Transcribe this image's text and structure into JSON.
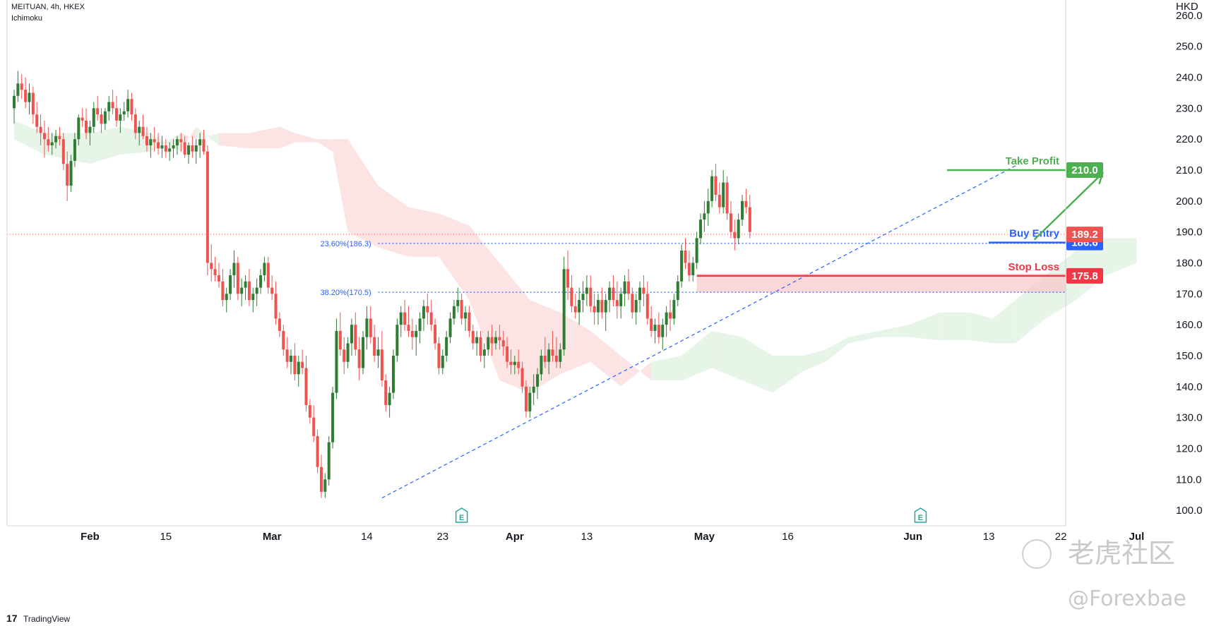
{
  "header": {
    "symbol_line": "MEITUAN, 4h, HKEX",
    "indicator": "Ichimoku"
  },
  "footer": {
    "brand": "TradingView"
  },
  "watermark": {
    "cn_text": "老虎社区",
    "handle": "@Forexbae"
  },
  "colors": {
    "bull": "#26a69a",
    "bull_candle": "#2e7d32",
    "bear": "#ef5350",
    "take_profit": "#4caf50",
    "buy_entry": "#2962ff",
    "stop_loss": "#f23645",
    "cloud_bull": "#e7f4e8",
    "cloud_bear": "#fde4e4",
    "fib": "#2962ff"
  },
  "chart_data": {
    "type": "candlestick",
    "title": "MEITUAN, 4h, HKEX",
    "indicator": "Ichimoku",
    "currency": "HKD",
    "ylim": [
      95,
      265
    ],
    "y_ticks": [
      "260.0",
      "250.0",
      "240.0",
      "230.0",
      "220.0",
      "210.0",
      "200.0",
      "190.0",
      "180.0",
      "170.0",
      "160.0",
      "150.0",
      "140.0",
      "130.0",
      "120.0",
      "110.0",
      "100.0"
    ],
    "x_ticks": [
      {
        "label": "Feb",
        "bar": 20
      },
      {
        "label": "15",
        "bar": 40
      },
      {
        "label": "Mar",
        "bar": 68
      },
      {
        "label": "14",
        "bar": 93
      },
      {
        "label": "23",
        "bar": 113
      },
      {
        "label": "Apr",
        "bar": 132
      },
      {
        "label": "13",
        "bar": 151
      },
      {
        "label": "May",
        "bar": 182
      },
      {
        "label": "16",
        "bar": 204
      },
      {
        "label": "Jun",
        "bar": 237
      },
      {
        "label": "13",
        "bar": 257
      },
      {
        "label": "22",
        "bar": 276
      },
      {
        "label": "Jul",
        "bar": 296
      }
    ],
    "x_label_bold": [
      "Feb",
      "Mar",
      "Apr",
      "May",
      "Jun",
      "Jul"
    ],
    "last_price": {
      "value": 189.2,
      "label": "189.2"
    },
    "levels": [
      {
        "name": "Take Profit",
        "value": 210.0,
        "label": "210.0",
        "color": "#4caf50",
        "from_bar": 246
      },
      {
        "name": "Buy Entry",
        "value": 186.6,
        "label": "186.6",
        "color": "#2962ff",
        "from_bar": 257
      },
      {
        "name": "Stop Loss",
        "value": 175.8,
        "label": "175.8",
        "color": "#f23645",
        "from_bar": 180
      }
    ],
    "fib_levels": [
      {
        "label": "23.60%(186.3)",
        "value": 186.3,
        "from_bar": 96
      },
      {
        "label": "38.20%(170.5)",
        "value": 170.5,
        "from_bar": 96
      }
    ],
    "stop_zone": {
      "from_bar": 180,
      "top": 176.5,
      "bottom": 170.5
    },
    "trendline": {
      "from": {
        "bar": 97,
        "value": 104
      },
      "to": {
        "bar": 265,
        "value": 212
      }
    },
    "projection_arrow": {
      "from": {
        "bar": 269,
        "value": 187.5
      },
      "to": {
        "bar": 287,
        "value": 209
      }
    },
    "earnings_markers": [
      {
        "bar": 118,
        "label": "E"
      },
      {
        "bar": 239,
        "label": "E"
      }
    ],
    "candles_ohlc": [
      [
        230,
        236,
        225,
        234
      ],
      [
        234,
        242,
        232,
        238
      ],
      [
        238,
        241,
        233,
        236
      ],
      [
        236,
        240,
        230,
        232
      ],
      [
        232,
        238,
        228,
        235
      ],
      [
        235,
        237,
        225,
        228
      ],
      [
        228,
        232,
        222,
        224
      ],
      [
        224,
        228,
        218,
        222
      ],
      [
        222,
        226,
        214,
        220
      ],
      [
        220,
        224,
        216,
        218
      ],
      [
        218,
        222,
        215,
        219
      ],
      [
        219,
        223,
        217,
        221
      ],
      [
        221,
        224,
        218,
        220
      ],
      [
        220,
        222,
        210,
        212
      ],
      [
        212,
        216,
        200,
        205
      ],
      [
        205,
        215,
        203,
        213
      ],
      [
        213,
        222,
        211,
        220
      ],
      [
        220,
        228,
        218,
        227
      ],
      [
        227,
        230,
        224,
        226
      ],
      [
        226,
        230,
        220,
        222
      ],
      [
        222,
        226,
        218,
        224
      ],
      [
        224,
        232,
        222,
        230
      ],
      [
        230,
        234,
        226,
        228
      ],
      [
        228,
        230,
        222,
        225
      ],
      [
        225,
        230,
        223,
        229
      ],
      [
        229,
        234,
        226,
        232
      ],
      [
        232,
        236,
        228,
        230
      ],
      [
        230,
        234,
        224,
        226
      ],
      [
        226,
        230,
        222,
        228
      ],
      [
        228,
        232,
        226,
        229
      ],
      [
        229,
        236,
        227,
        233
      ],
      [
        233,
        235,
        226,
        228
      ],
      [
        228,
        230,
        220,
        222
      ],
      [
        222,
        226,
        218,
        224
      ],
      [
        224,
        228,
        220,
        221
      ],
      [
        221,
        224,
        216,
        218
      ],
      [
        218,
        222,
        214,
        220
      ],
      [
        220,
        224,
        216,
        219
      ],
      [
        219,
        222,
        215,
        217
      ],
      [
        217,
        221,
        214,
        218
      ],
      [
        218,
        220,
        214,
        216
      ],
      [
        216,
        219,
        213,
        217
      ],
      [
        217,
        220,
        214,
        218
      ],
      [
        218,
        221,
        215,
        220
      ],
      [
        220,
        222,
        216,
        219
      ],
      [
        219,
        221,
        214,
        215
      ],
      [
        215,
        219,
        212,
        218
      ],
      [
        218,
        221,
        214,
        216
      ],
      [
        216,
        220,
        212,
        218
      ],
      [
        218,
        222,
        214,
        220
      ],
      [
        220,
        223,
        215,
        216
      ],
      [
        216,
        218,
        176,
        180
      ],
      [
        180,
        186,
        174,
        178
      ],
      [
        178,
        182,
        174,
        176
      ],
      [
        176,
        180,
        172,
        174
      ],
      [
        174,
        178,
        166,
        168
      ],
      [
        168,
        172,
        164,
        170
      ],
      [
        170,
        178,
        168,
        176
      ],
      [
        176,
        184,
        172,
        180
      ],
      [
        180,
        182,
        168,
        170
      ],
      [
        170,
        175,
        166,
        172
      ],
      [
        172,
        176,
        168,
        174
      ],
      [
        174,
        178,
        166,
        168
      ],
      [
        168,
        172,
        164,
        170
      ],
      [
        170,
        175,
        166,
        172
      ],
      [
        172,
        178,
        170,
        176
      ],
      [
        176,
        182,
        174,
        180
      ],
      [
        180,
        182,
        170,
        172
      ],
      [
        172,
        176,
        168,
        170
      ],
      [
        170,
        174,
        160,
        162
      ],
      [
        162,
        164,
        156,
        158
      ],
      [
        158,
        160,
        150,
        152
      ],
      [
        152,
        156,
        146,
        148
      ],
      [
        148,
        152,
        144,
        150
      ],
      [
        150,
        154,
        142,
        144
      ],
      [
        144,
        150,
        140,
        148
      ],
      [
        148,
        152,
        144,
        146
      ],
      [
        146,
        150,
        132,
        134
      ],
      [
        134,
        136,
        128,
        130
      ],
      [
        130,
        134,
        122,
        124
      ],
      [
        124,
        126,
        112,
        114
      ],
      [
        114,
        118,
        104,
        106
      ],
      [
        106,
        112,
        104,
        110
      ],
      [
        110,
        124,
        108,
        122
      ],
      [
        122,
        140,
        120,
        138
      ],
      [
        138,
        162,
        136,
        158
      ],
      [
        158,
        164,
        150,
        152
      ],
      [
        152,
        156,
        144,
        148
      ],
      [
        148,
        156,
        146,
        154
      ],
      [
        154,
        162,
        150,
        160
      ],
      [
        160,
        164,
        150,
        152
      ],
      [
        152,
        156,
        142,
        146
      ],
      [
        146,
        158,
        144,
        156
      ],
      [
        156,
        166,
        152,
        162
      ],
      [
        162,
        166,
        154,
        156
      ],
      [
        156,
        160,
        148,
        150
      ],
      [
        150,
        156,
        146,
        152
      ],
      [
        152,
        158,
        140,
        142
      ],
      [
        142,
        144,
        132,
        134
      ],
      [
        134,
        140,
        130,
        138
      ],
      [
        138,
        152,
        136,
        150
      ],
      [
        150,
        162,
        148,
        160
      ],
      [
        160,
        166,
        156,
        164
      ],
      [
        164,
        168,
        158,
        160
      ],
      [
        160,
        166,
        156,
        158
      ],
      [
        158,
        162,
        152,
        156
      ],
      [
        156,
        160,
        150,
        158
      ],
      [
        158,
        164,
        154,
        162
      ],
      [
        162,
        168,
        158,
        166
      ],
      [
        166,
        170,
        160,
        164
      ],
      [
        164,
        168,
        158,
        160
      ],
      [
        160,
        162,
        152,
        154
      ],
      [
        154,
        156,
        144,
        146
      ],
      [
        146,
        152,
        144,
        150
      ],
      [
        150,
        158,
        148,
        156
      ],
      [
        156,
        164,
        154,
        162
      ],
      [
        162,
        168,
        160,
        166
      ],
      [
        166,
        172,
        164,
        168
      ],
      [
        168,
        170,
        160,
        162
      ],
      [
        162,
        166,
        158,
        164
      ],
      [
        164,
        166,
        156,
        158
      ],
      [
        158,
        160,
        152,
        154
      ],
      [
        154,
        158,
        150,
        156
      ],
      [
        156,
        158,
        148,
        150
      ],
      [
        150,
        154,
        146,
        152
      ],
      [
        152,
        158,
        150,
        156
      ],
      [
        156,
        160,
        150,
        154
      ],
      [
        154,
        158,
        152,
        156
      ],
      [
        156,
        160,
        152,
        155
      ],
      [
        155,
        158,
        150,
        153
      ],
      [
        153,
        156,
        146,
        148
      ],
      [
        148,
        152,
        144,
        147
      ],
      [
        147,
        150,
        144,
        148
      ],
      [
        148,
        152,
        144,
        146
      ],
      [
        146,
        148,
        138,
        140
      ],
      [
        140,
        142,
        130,
        132
      ],
      [
        132,
        140,
        130,
        138
      ],
      [
        138,
        144,
        134,
        140
      ],
      [
        140,
        146,
        136,
        144
      ],
      [
        144,
        152,
        142,
        150
      ],
      [
        150,
        156,
        146,
        148
      ],
      [
        148,
        154,
        144,
        152
      ],
      [
        152,
        158,
        148,
        150
      ],
      [
        150,
        156,
        146,
        148
      ],
      [
        148,
        154,
        146,
        152
      ],
      [
        152,
        182,
        150,
        178
      ],
      [
        178,
        184,
        168,
        172
      ],
      [
        172,
        176,
        164,
        166
      ],
      [
        166,
        170,
        162,
        164
      ],
      [
        164,
        172,
        160,
        168
      ],
      [
        168,
        174,
        164,
        170
      ],
      [
        170,
        176,
        166,
        172
      ],
      [
        172,
        176,
        164,
        166
      ],
      [
        166,
        170,
        160,
        164
      ],
      [
        164,
        170,
        160,
        168
      ],
      [
        168,
        172,
        162,
        164
      ],
      [
        164,
        170,
        158,
        168
      ],
      [
        168,
        174,
        164,
        172
      ],
      [
        172,
        176,
        166,
        168
      ],
      [
        168,
        174,
        162,
        166
      ],
      [
        166,
        172,
        162,
        170
      ],
      [
        170,
        176,
        166,
        174
      ],
      [
        174,
        178,
        168,
        170
      ],
      [
        170,
        172,
        162,
        164
      ],
      [
        164,
        170,
        160,
        168
      ],
      [
        168,
        174,
        164,
        172
      ],
      [
        172,
        176,
        166,
        170
      ],
      [
        170,
        174,
        160,
        162
      ],
      [
        162,
        166,
        156,
        158
      ],
      [
        158,
        162,
        154,
        160
      ],
      [
        160,
        164,
        154,
        156
      ],
      [
        156,
        162,
        152,
        160
      ],
      [
        160,
        166,
        156,
        164
      ],
      [
        164,
        168,
        158,
        162
      ],
      [
        162,
        170,
        160,
        168
      ],
      [
        168,
        176,
        166,
        174
      ],
      [
        174,
        186,
        172,
        184
      ],
      [
        184,
        188,
        178,
        180
      ],
      [
        180,
        184,
        174,
        176
      ],
      [
        176,
        182,
        174,
        180
      ],
      [
        180,
        190,
        178,
        188
      ],
      [
        188,
        196,
        186,
        194
      ],
      [
        194,
        200,
        190,
        196
      ],
      [
        196,
        204,
        192,
        200
      ],
      [
        200,
        210,
        198,
        208
      ],
      [
        208,
        212,
        200,
        202
      ],
      [
        202,
        206,
        196,
        198
      ],
      [
        198,
        210,
        196,
        206
      ],
      [
        206,
        208,
        194,
        196
      ],
      [
        196,
        200,
        188,
        190
      ],
      [
        190,
        194,
        184,
        188
      ],
      [
        188,
        196,
        186,
        194
      ],
      [
        194,
        202,
        192,
        200
      ],
      [
        200,
        204,
        196,
        198
      ],
      [
        198,
        202,
        188,
        190
      ]
    ],
    "ichimoku_cloud": [
      {
        "bar": 0,
        "a": 226,
        "b": 220
      },
      {
        "bar": 8,
        "a": 222,
        "b": 215
      },
      {
        "bar": 20,
        "a": 222,
        "b": 212
      },
      {
        "bar": 28,
        "a": 224,
        "b": 215
      },
      {
        "bar": 36,
        "a": 222,
        "b": 216
      },
      {
        "bar": 44,
        "a": 216,
        "b": 222
      },
      {
        "bar": 48,
        "a": 224,
        "b": 220
      },
      {
        "bar": 54,
        "a": 218,
        "b": 222
      },
      {
        "bar": 62,
        "a": 217,
        "b": 222
      },
      {
        "bar": 70,
        "a": 217,
        "b": 224
      },
      {
        "bar": 74,
        "a": 219,
        "b": 222
      },
      {
        "bar": 80,
        "a": 219,
        "b": 220
      },
      {
        "bar": 84,
        "a": 216,
        "b": 220
      },
      {
        "bar": 88,
        "a": 190,
        "b": 220
      },
      {
        "bar": 96,
        "a": 185,
        "b": 205
      },
      {
        "bar": 104,
        "a": 182,
        "b": 198
      },
      {
        "bar": 112,
        "a": 182,
        "b": 196
      },
      {
        "bar": 120,
        "a": 168,
        "b": 192
      },
      {
        "bar": 128,
        "a": 142,
        "b": 180
      },
      {
        "bar": 136,
        "a": 138,
        "b": 168
      },
      {
        "bar": 144,
        "a": 144,
        "b": 164
      },
      {
        "bar": 152,
        "a": 148,
        "b": 158
      },
      {
        "bar": 160,
        "a": 140,
        "b": 150
      },
      {
        "bar": 168,
        "a": 148,
        "b": 142
      },
      {
        "bar": 176,
        "a": 150,
        "b": 142
      },
      {
        "bar": 184,
        "a": 158,
        "b": 146
      },
      {
        "bar": 192,
        "a": 156,
        "b": 142
      },
      {
        "bar": 200,
        "a": 150,
        "b": 138
      },
      {
        "bar": 208,
        "a": 150,
        "b": 145
      },
      {
        "bar": 214,
        "a": 152,
        "b": 148
      },
      {
        "bar": 220,
        "a": 156,
        "b": 154
      },
      {
        "bar": 228,
        "a": 158,
        "b": 156
      },
      {
        "bar": 236,
        "a": 160,
        "b": 156
      },
      {
        "bar": 244,
        "a": 164,
        "b": 155
      },
      {
        "bar": 252,
        "a": 164,
        "b": 155
      },
      {
        "bar": 258,
        "a": 162,
        "b": 154
      },
      {
        "bar": 264,
        "a": 168,
        "b": 154
      },
      {
        "bar": 272,
        "a": 176,
        "b": 162
      },
      {
        "bar": 280,
        "a": 184,
        "b": 168
      },
      {
        "bar": 288,
        "a": 188,
        "b": 176
      },
      {
        "bar": 296,
        "a": 188,
        "b": 180
      }
    ]
  }
}
